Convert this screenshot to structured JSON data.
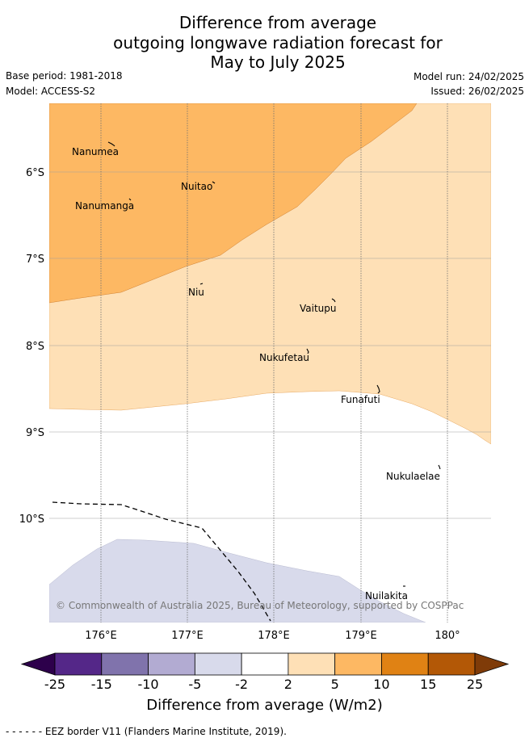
{
  "title": {
    "line1": "Difference from average",
    "line2": "outgoing longwave radiation forecast for",
    "line3": "May to July 2025"
  },
  "meta": {
    "base_period": "Base period: 1981-2018",
    "model": "Model: ACCESS-S2",
    "model_run": "Model run: 24/02/2025",
    "issued": "Issued: 26/02/2025"
  },
  "map": {
    "lat_labels": [
      "6°S",
      "7°S",
      "8°S",
      "9°S",
      "10°S"
    ],
    "lon_labels": [
      "176°E",
      "177°E",
      "178°E",
      "179°E",
      "180°"
    ],
    "islands": [
      "Nanumea",
      "Nuitao",
      "Nanumanga",
      "Niu",
      "Vaitupu",
      "Nukufetau",
      "Funafuti",
      "Nukulaelae",
      "Nuilakita"
    ],
    "copyright": "© Commonwealth of Australia 2025, Bureau of Meteorology, supported by COSPPac",
    "colors": {
      "orange_5_10": "#fdb863",
      "peach_2_5": "#fee0b6",
      "lavender_m5_m2": "#d8daeb"
    }
  },
  "colorbar": {
    "ticks": [
      "-25",
      "-15",
      "-10",
      "-5",
      "-2",
      "2",
      "5",
      "10",
      "15",
      "25"
    ],
    "colors": [
      "#2d004b",
      "#542788",
      "#8073ac",
      "#b2abd2",
      "#d8daeb",
      "#ffffff",
      "#fee0b6",
      "#fdb863",
      "#e08214",
      "#b35806",
      "#7f3b08"
    ],
    "label": "Difference from average (W/m2)"
  },
  "footer": "- -  - -  - - EEZ border V11 (Flanders Marine Institute, 2019)."
}
